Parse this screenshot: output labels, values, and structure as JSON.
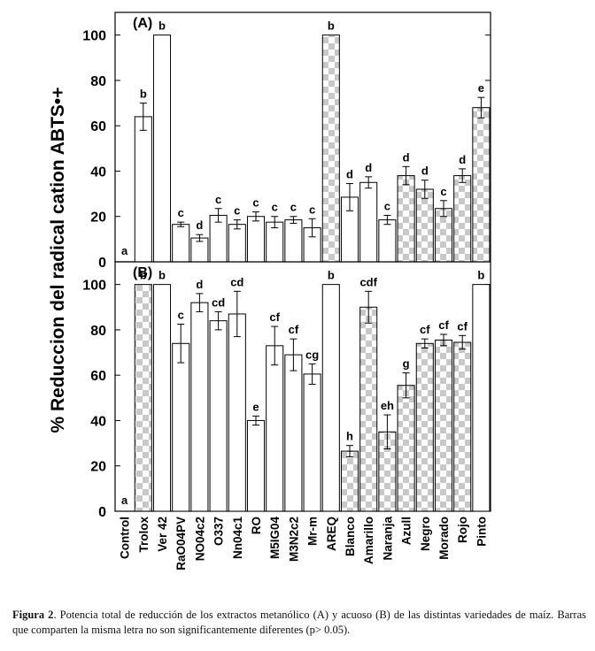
{
  "chart_data": [
    {
      "type": "bar",
      "panel_label": "(A)",
      "ylabel": "% Reduccion del radical cation ABTS•+",
      "ylim": [
        0,
        110
      ],
      "yticks": [
        0,
        20,
        40,
        60,
        80,
        100
      ],
      "categories": [
        "Control",
        "Trolox",
        "Ver 42",
        "RaO04PV",
        "NO04c2",
        "O337",
        "Nn04c1",
        "RO",
        "M5IG04",
        "M3N2c2",
        "Mr-m",
        "AREQ",
        "Blanco",
        "Amarillo",
        "Naranja",
        "Azull",
        "Negro",
        "Morado",
        "Rojo",
        "Pinto"
      ],
      "values": [
        0,
        64,
        100,
        16.5,
        10.5,
        20.5,
        16.5,
        20,
        17.5,
        18.5,
        15,
        100,
        28.5,
        35,
        18.5,
        38,
        32,
        23.5,
        38,
        68
      ],
      "errors": [
        0,
        6,
        0,
        1,
        1.5,
        3,
        2,
        2,
        2.5,
        1.5,
        4,
        0,
        6,
        2.5,
        2,
        4,
        4,
        3.5,
        3,
        4.5
      ],
      "letters": [
        "a",
        "b",
        "b",
        "c",
        "d",
        "c",
        "c",
        "c",
        "c",
        "c",
        "c",
        "b",
        "d",
        "d",
        "c",
        "d",
        "d",
        "c",
        "d",
        "e"
      ],
      "fill": [
        "plain",
        "plain",
        "plain",
        "plain",
        "plain",
        "plain",
        "plain",
        "plain",
        "plain",
        "plain",
        "plain",
        "pattern",
        "plain",
        "plain",
        "plain",
        "pattern",
        "pattern",
        "pattern",
        "pattern",
        "pattern"
      ]
    },
    {
      "type": "bar",
      "panel_label": "(B)",
      "ylabel": "% Reduccion del radical cation ABTS•+",
      "ylim": [
        0,
        110
      ],
      "yticks": [
        0,
        20,
        40,
        60,
        80,
        100
      ],
      "categories": [
        "Control",
        "Trolox",
        "Ver 42",
        "RaO04PV",
        "NO04c2",
        "O337",
        "Nn04c1",
        "RO",
        "M5IG04",
        "M3N2c2",
        "Mr-m",
        "AREQ",
        "Blanco",
        "Amarillo",
        "Naranja",
        "Azull",
        "Negro",
        "Morado",
        "Rojo",
        "Pinto"
      ],
      "values": [
        0,
        100,
        100,
        74,
        92,
        84,
        87,
        40,
        73,
        69,
        60.5,
        100,
        26.5,
        90,
        35,
        55.5,
        74,
        75.5,
        74.5,
        100
      ],
      "errors": [
        0,
        0,
        0,
        8.5,
        4,
        4,
        10,
        2,
        8.5,
        7,
        4.5,
        0,
        2.5,
        7,
        7.5,
        5.5,
        2,
        2.5,
        3,
        0
      ],
      "letters": [
        "a",
        "b",
        "b",
        "c",
        "d",
        "cd",
        "cd",
        "e",
        "cf",
        "cf",
        "cg",
        "b",
        "h",
        "cdf",
        "eh",
        "g",
        "cf",
        "cf",
        "cf",
        "b"
      ],
      "fill": [
        "plain",
        "pattern",
        "plain",
        "plain",
        "plain",
        "plain",
        "plain",
        "plain",
        "plain",
        "plain",
        "plain",
        "plain",
        "pattern",
        "pattern",
        "pattern",
        "pattern",
        "pattern",
        "pattern",
        "pattern",
        "plain"
      ]
    }
  ],
  "caption": {
    "label": "Figura 2",
    "text": ". Potencia total de reducción de los extractos metanólico (A) y acuoso (B) de las distintas variedades de maíz. Barras que comparten la misma letra no son significantemente diferentes (p> 0.05)."
  },
  "colors": {
    "pattern": "#c8c8c8",
    "bar_edge": "#000000",
    "background": "#ffffff"
  }
}
